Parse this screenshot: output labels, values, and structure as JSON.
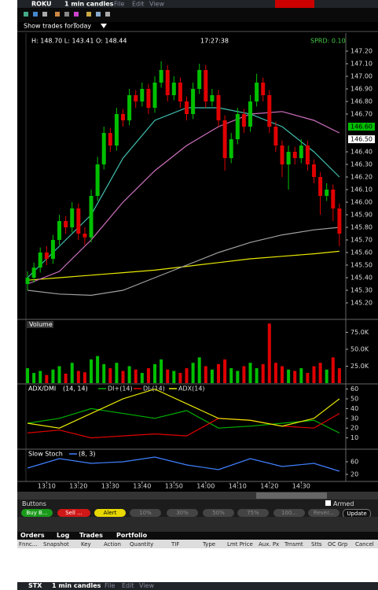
{
  "window": {
    "symbol": "ROKU",
    "period": "1 min candles",
    "menu": [
      "File",
      "Edit",
      "View"
    ]
  },
  "toolbar": {
    "show_trades_label": "Show trades for:",
    "show_trades_value": "Today"
  },
  "chart_data": [
    {
      "type": "candlestick",
      "info": {
        "hlo": "H: 148.70 L: 143.41 O: 148.44",
        "time": "17:27:38",
        "spread": "SPRD: 0.10"
      },
      "up_color": "#00c000",
      "down_color": "#e00000",
      "x": [
        784,
        786,
        788,
        790,
        792,
        794,
        796,
        798,
        800,
        802,
        804,
        806,
        808,
        810,
        812,
        814,
        816,
        818,
        820,
        822,
        824,
        826,
        828,
        830,
        832,
        834,
        836,
        838,
        840,
        842,
        844,
        846,
        848,
        850,
        852,
        854,
        856,
        858,
        860,
        862,
        864,
        866,
        868,
        870,
        872,
        874,
        876,
        878,
        880,
        882
      ],
      "candles": [
        [
          145.35,
          145.45,
          145.3,
          145.4
        ],
        [
          145.4,
          145.52,
          145.36,
          145.48
        ],
        [
          145.48,
          145.64,
          145.44,
          145.6
        ],
        [
          145.6,
          145.65,
          145.5,
          145.55
        ],
        [
          145.55,
          145.74,
          145.51,
          145.7
        ],
        [
          145.7,
          145.9,
          145.66,
          145.85
        ],
        [
          145.85,
          145.89,
          145.75,
          145.8
        ],
        [
          145.8,
          146.0,
          145.76,
          145.95
        ],
        [
          145.95,
          145.99,
          145.7,
          145.75
        ],
        [
          145.75,
          145.8,
          145.66,
          145.72
        ],
        [
          145.72,
          146.1,
          145.68,
          146.05
        ],
        [
          146.05,
          146.36,
          146.01,
          146.3
        ],
        [
          146.3,
          146.6,
          146.26,
          146.55
        ],
        [
          146.55,
          146.59,
          146.4,
          146.45
        ],
        [
          146.45,
          146.75,
          146.41,
          146.7
        ],
        [
          146.7,
          146.74,
          146.6,
          146.65
        ],
        [
          146.65,
          146.9,
          146.61,
          146.85
        ],
        [
          146.85,
          146.89,
          146.75,
          146.8
        ],
        [
          146.8,
          146.95,
          146.76,
          146.9
        ],
        [
          146.9,
          146.94,
          146.7,
          146.75
        ],
        [
          146.75,
          147.0,
          146.71,
          146.95
        ],
        [
          146.95,
          147.12,
          146.91,
          147.05
        ],
        [
          147.05,
          147.09,
          146.8,
          146.85
        ],
        [
          146.85,
          147.0,
          146.81,
          146.95
        ],
        [
          146.95,
          146.99,
          146.75,
          146.8
        ],
        [
          146.8,
          146.84,
          146.65,
          146.7
        ],
        [
          146.7,
          146.95,
          146.66,
          146.9
        ],
        [
          146.9,
          147.1,
          146.86,
          147.05
        ],
        [
          147.05,
          147.09,
          146.75,
          146.8
        ],
        [
          146.8,
          146.9,
          146.76,
          146.85
        ],
        [
          146.85,
          146.89,
          146.6,
          146.65
        ],
        [
          146.65,
          146.69,
          146.25,
          146.35
        ],
        [
          146.35,
          146.55,
          146.31,
          146.5
        ],
        [
          146.5,
          146.75,
          146.46,
          146.7
        ],
        [
          146.7,
          146.74,
          146.55,
          146.6
        ],
        [
          146.6,
          146.85,
          146.56,
          146.8
        ],
        [
          146.8,
          147.02,
          146.76,
          146.95
        ],
        [
          146.95,
          146.99,
          146.8,
          146.85
        ],
        [
          146.85,
          146.89,
          146.55,
          146.6
        ],
        [
          146.6,
          146.64,
          146.4,
          146.45
        ],
        [
          146.45,
          146.49,
          146.2,
          146.3
        ],
        [
          146.3,
          146.45,
          146.1,
          146.4
        ],
        [
          146.4,
          146.44,
          146.3,
          146.35
        ],
        [
          146.35,
          146.5,
          146.31,
          146.45
        ],
        [
          146.45,
          146.49,
          146.25,
          146.3
        ],
        [
          146.3,
          146.34,
          146.15,
          146.2
        ],
        [
          146.2,
          146.24,
          145.9,
          146.05
        ],
        [
          146.05,
          146.15,
          146.01,
          146.1
        ],
        [
          146.1,
          146.14,
          145.85,
          145.95
        ],
        [
          145.95,
          145.99,
          145.65,
          145.75
        ]
      ],
      "lines": [
        {
          "color": "#e8e800",
          "x": [
            784,
            794,
            804,
            814,
            824,
            834,
            844,
            854,
            864,
            874,
            882
          ],
          "values": [
            145.38,
            145.4,
            145.42,
            145.44,
            145.46,
            145.49,
            145.52,
            145.55,
            145.57,
            145.59,
            145.61
          ]
        },
        {
          "color": "#a0a0a0",
          "x": [
            784,
            794,
            804,
            814,
            824,
            834,
            844,
            854,
            864,
            874,
            882
          ],
          "values": [
            145.3,
            145.27,
            145.26,
            145.3,
            145.4,
            145.5,
            145.6,
            145.68,
            145.74,
            145.78,
            145.8
          ]
        },
        {
          "color": "#d070c0",
          "x": [
            784,
            794,
            804,
            814,
            824,
            834,
            844,
            854,
            864,
            874,
            882
          ],
          "values": [
            145.35,
            145.45,
            145.7,
            146.0,
            146.25,
            146.45,
            146.6,
            146.7,
            146.72,
            146.65,
            146.55
          ]
        },
        {
          "color": "#40c0b0",
          "x": [
            784,
            794,
            804,
            814,
            824,
            834,
            844,
            854,
            864,
            874,
            882
          ],
          "values": [
            145.4,
            145.65,
            145.9,
            146.35,
            146.65,
            146.75,
            146.75,
            146.7,
            146.6,
            146.4,
            146.2
          ]
        }
      ],
      "price_markers": [
        {
          "value": 146.6,
          "label": "146.60",
          "color": "#00c000"
        },
        {
          "value": 146.5,
          "label": "146.50",
          "color": "#ffffff"
        }
      ],
      "ylim": [
        145.075,
        147.34375
      ],
      "yticks": [
        {
          "value": 147.2,
          "label": "147.20"
        },
        {
          "value": 147.1,
          "label": "147.10"
        },
        {
          "value": 147.0,
          "label": "147.00"
        },
        {
          "value": 146.9,
          "label": "146.90"
        },
        {
          "value": 146.8,
          "label": "146.80"
        },
        {
          "value": 146.7,
          "label": "146.70"
        },
        {
          "value": 146.4,
          "label": "146.40"
        },
        {
          "value": 146.3,
          "label": "146.30"
        },
        {
          "value": 146.2,
          "label": "146.20"
        },
        {
          "value": 146.1,
          "label": "146.10"
        },
        {
          "value": 146.0,
          "label": "146.00"
        },
        {
          "value": 145.9,
          "label": "145.90"
        },
        {
          "value": 145.8,
          "label": "145.80"
        },
        {
          "value": 145.7,
          "label": "145.70"
        },
        {
          "value": 145.6,
          "label": "145.60"
        },
        {
          "value": 145.5,
          "label": "145.50"
        },
        {
          "value": 145.4,
          "label": "145.40"
        },
        {
          "value": 145.3,
          "label": "145.30"
        },
        {
          "value": 145.2,
          "label": "145.20"
        }
      ]
    },
    {
      "type": "bar",
      "title": "Volume",
      "up_color": "#00c000",
      "down_color": "#e00000",
      "x": [
        784,
        786,
        788,
        790,
        792,
        794,
        796,
        798,
        800,
        802,
        804,
        806,
        808,
        810,
        812,
        814,
        816,
        818,
        820,
        822,
        824,
        826,
        828,
        830,
        832,
        834,
        836,
        838,
        840,
        842,
        844,
        846,
        848,
        850,
        852,
        854,
        856,
        858,
        860,
        862,
        864,
        866,
        868,
        870,
        872,
        874,
        876,
        878,
        880,
        882
      ],
      "values": [
        22000,
        15000,
        18000,
        12000,
        20000,
        25000,
        14000,
        30000,
        18000,
        16000,
        35000,
        40000,
        28000,
        22000,
        30000,
        18000,
        25000,
        20000,
        15000,
        22000,
        28000,
        35000,
        20000,
        18000,
        15000,
        22000,
        30000,
        38000,
        25000,
        20000,
        28000,
        35000,
        22000,
        18000,
        25000,
        30000,
        22000,
        28000,
        88000,
        30000,
        25000,
        20000,
        18000,
        22000,
        15000,
        25000,
        30000,
        20000,
        38000,
        22000
      ],
      "ylim": [
        0,
        93000
      ],
      "yticks": [
        {
          "value": 75000,
          "label": "75.0K"
        },
        {
          "value": 50000,
          "label": "50.0K"
        },
        {
          "value": 25000,
          "label": "25.0K"
        }
      ]
    },
    {
      "type": "line",
      "title": "ADX/DMI",
      "params": "(14, 14)",
      "x": [
        784,
        794,
        804,
        814,
        824,
        834,
        844,
        854,
        864,
        874,
        882
      ],
      "series": [
        {
          "name": "DI+(14)",
          "color": "#00b000",
          "values": [
            25,
            30,
            40,
            35,
            30,
            38,
            20,
            22,
            25,
            28,
            15
          ]
        },
        {
          "name": "DI-(14)",
          "color": "#e00000",
          "values": [
            15,
            18,
            10,
            12,
            14,
            12,
            30,
            28,
            22,
            20,
            35
          ]
        },
        {
          "name": "ADX(14)",
          "color": "#e8e800",
          "values": [
            25,
            20,
            35,
            50,
            60,
            45,
            30,
            28,
            22,
            30,
            50
          ]
        }
      ],
      "ylim": [
        0,
        64.5
      ],
      "yticks": [
        60,
        50,
        40,
        30,
        20,
        10
      ]
    },
    {
      "type": "line",
      "title": "Slow Stoch",
      "params": "(8, 3)",
      "x": [
        784,
        794,
        804,
        814,
        824,
        834,
        844,
        854,
        864,
        874,
        882
      ],
      "series": [
        {
          "color": "#4080ff",
          "values": [
            40,
            70,
            55,
            60,
            75,
            50,
            35,
            70,
            45,
            55,
            30
          ]
        }
      ],
      "ylim": [
        0,
        95
      ],
      "yticks": [
        60,
        20
      ],
      "xlim": [
        783.5,
        884
      ],
      "xticks": [
        {
          "value": 790,
          "label": "13:10"
        },
        {
          "value": 800,
          "label": "13:20"
        },
        {
          "value": 810,
          "label": "13:30"
        },
        {
          "value": 820,
          "label": "13:40"
        },
        {
          "value": 830,
          "label": "13:50"
        },
        {
          "value": 840,
          "label": "14:00"
        },
        {
          "value": 850,
          "label": "14:10"
        },
        {
          "value": 860,
          "label": "14:20"
        },
        {
          "value": 870,
          "label": "14:30"
        }
      ]
    }
  ],
  "order_panel": {
    "title": "Buttons",
    "armed": "Armed",
    "buttons": [
      "Buy B...",
      "Sell ...",
      "Alert",
      "10%",
      "30%",
      "50%",
      "75%",
      "100...",
      "Rever...",
      "Update"
    ],
    "tabs": [
      "Orders",
      "Log",
      "Trades",
      "Portfolio"
    ],
    "columns": [
      "Fnnc...",
      "Snapshot",
      "Key",
      "Action",
      "Quantity",
      "TIF",
      "Type",
      "Lmt Price",
      "Aux. Px",
      "Trnsmt",
      "Stts",
      "OC Grp",
      "Cancel"
    ]
  },
  "bottom_window": {
    "symbol": "STX",
    "period": "1 min candles",
    "menu": [
      "File",
      "Edit",
      "View"
    ]
  }
}
